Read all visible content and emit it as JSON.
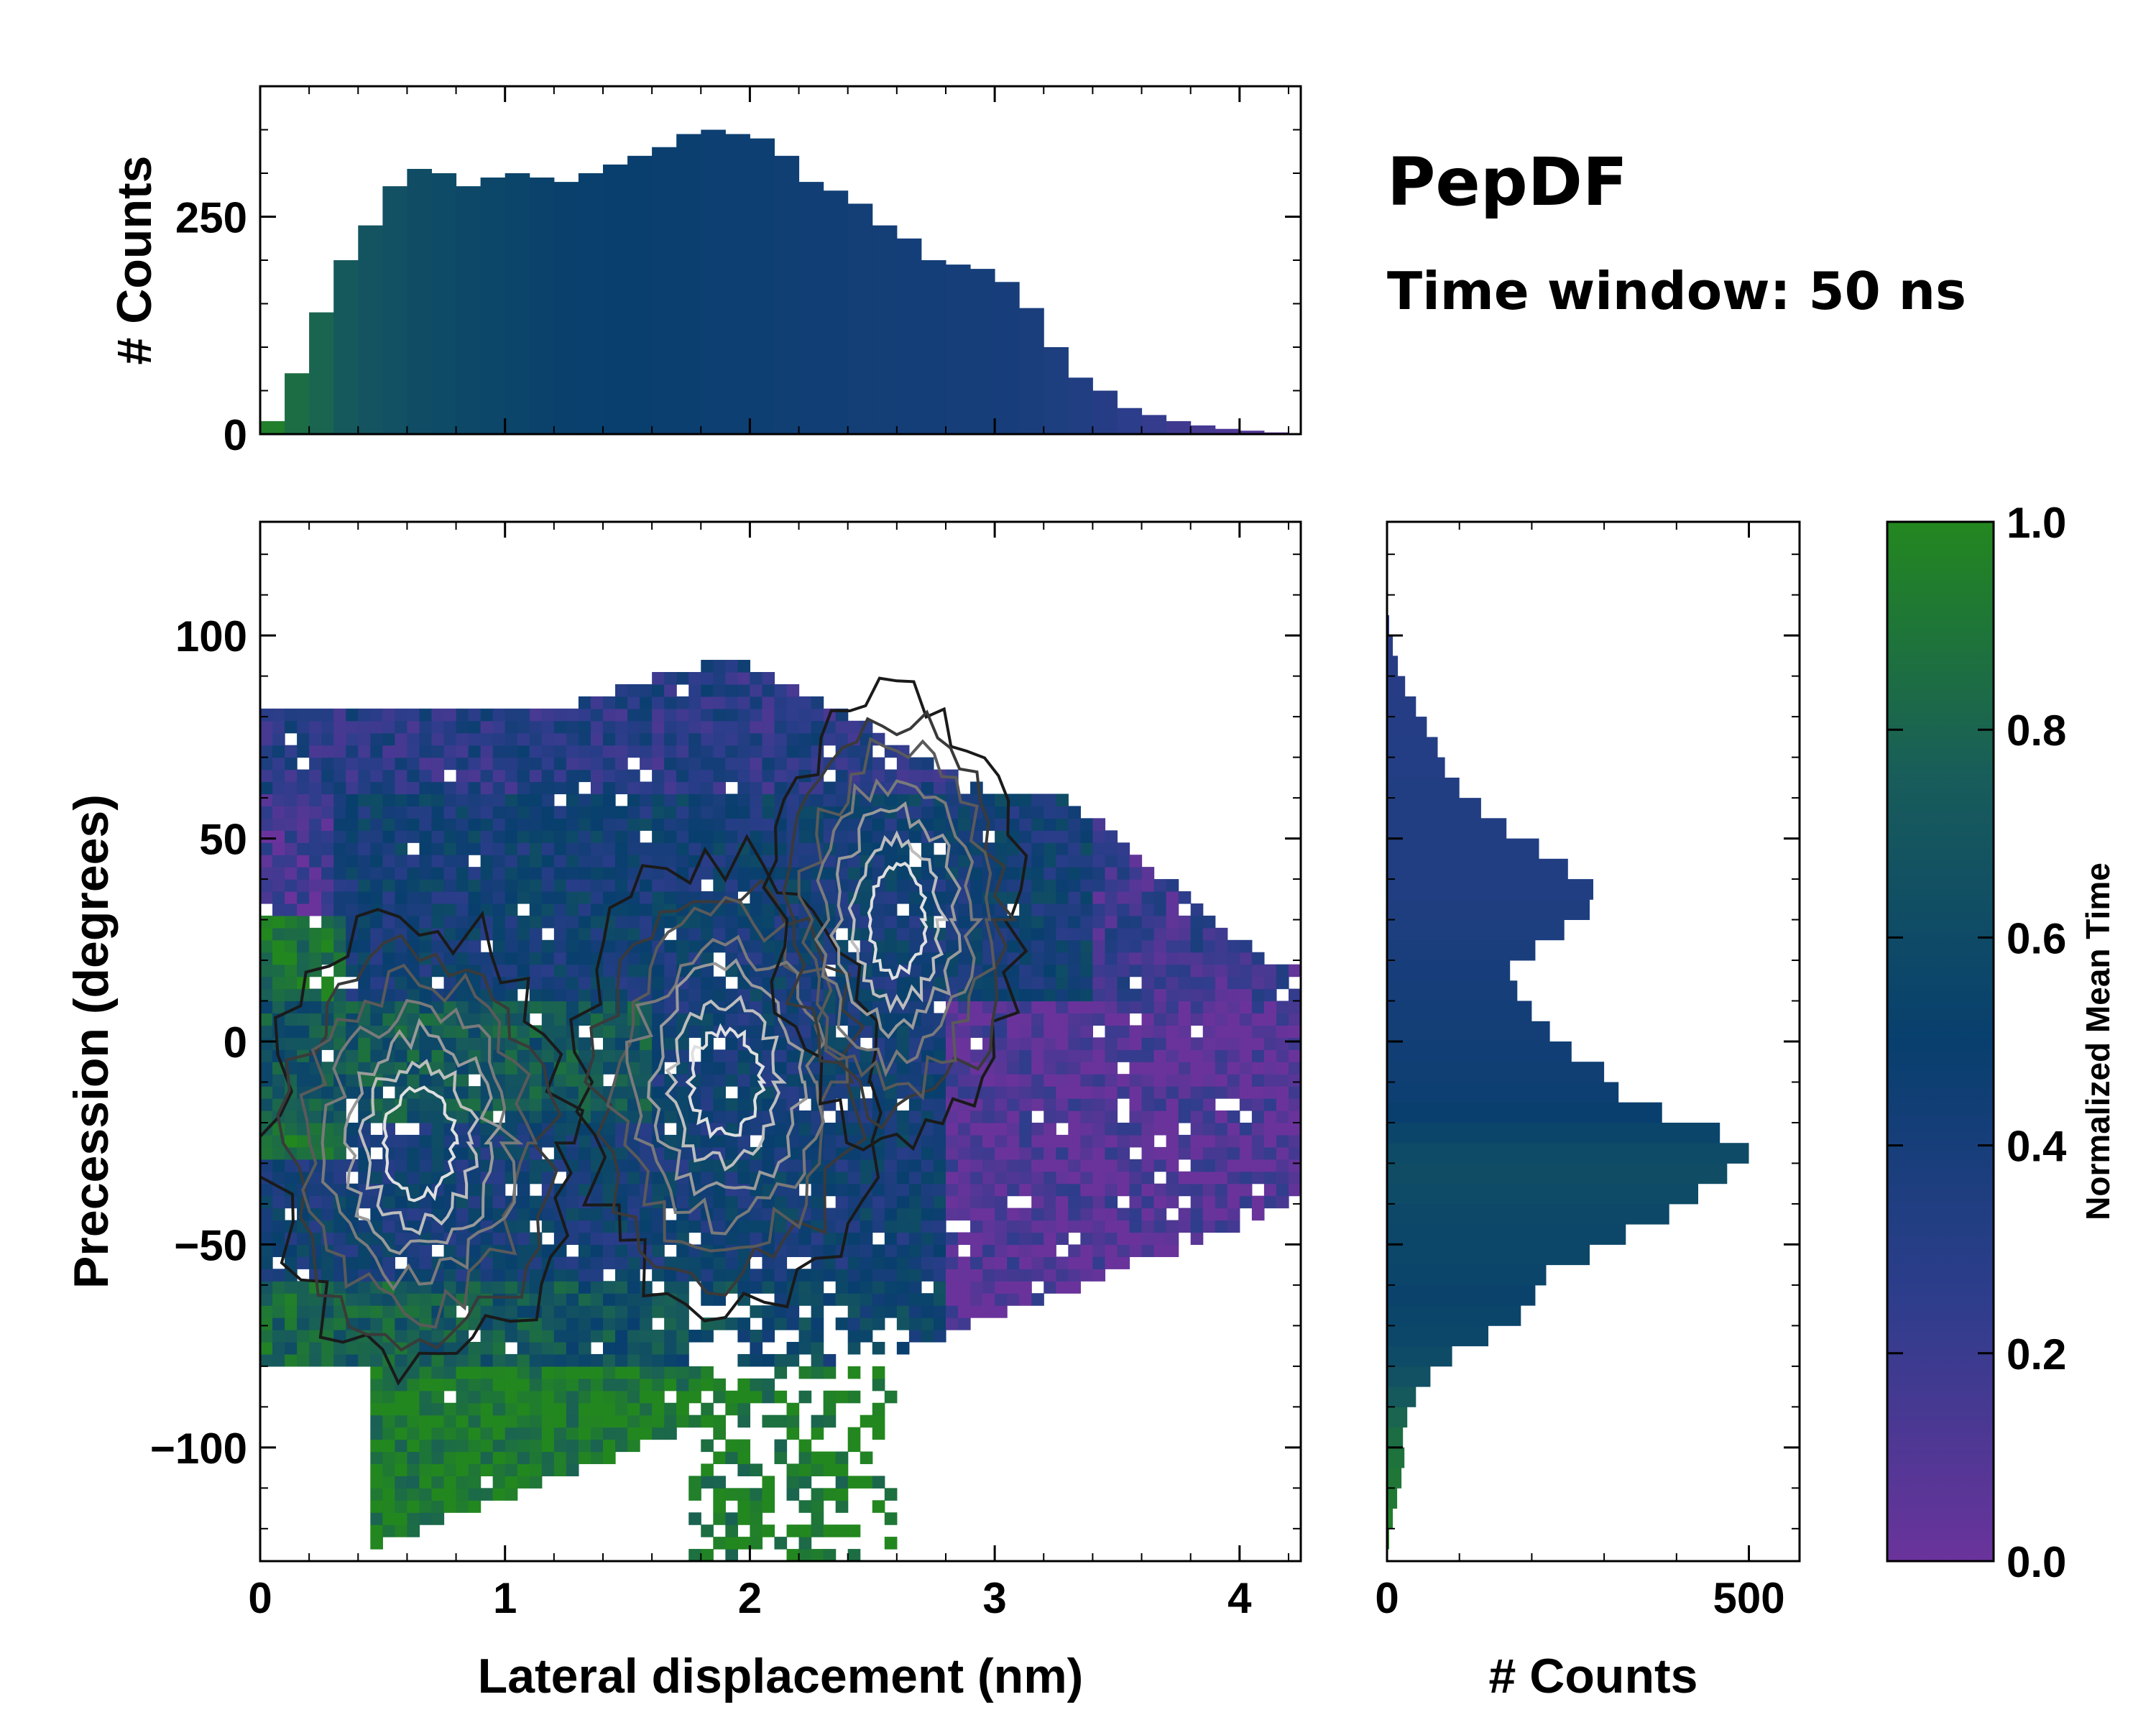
{
  "title": "PepDF",
  "subtitle": "Time window: 50 ns",
  "colors": {
    "low": "#6a339b",
    "mid_low": "#2e3d8c",
    "mid": "#083f6e",
    "mid_high": "#185c5b",
    "high": "#23871f"
  },
  "chart_data": [
    {
      "name": "joint-2d-histogram",
      "type": "heatmap",
      "xlabel": "Lateral displacement (nm)",
      "ylabel": "Precession (degrees)",
      "xlim": [
        0,
        4.25
      ],
      "ylim": [
        -128,
        128
      ],
      "xticks": [
        0,
        1,
        2,
        3,
        4
      ],
      "xtick_labels": [
        "0",
        "1",
        "2",
        "3",
        "4"
      ],
      "yticks": [
        100,
        50,
        0,
        -50,
        -100
      ],
      "ytick_labels": [
        "100",
        "50",
        "0",
        "−50",
        "−100"
      ],
      "color_value": "Normalized Mean Time",
      "contours": "black-to-white density contours",
      "density_centers": [
        {
          "x": 0.65,
          "y": -25
        },
        {
          "x": 1.9,
          "y": -10
        },
        {
          "x": 2.6,
          "y": 30
        }
      ],
      "regions": [
        {
          "label": "early (purple)",
          "x": [
            2.9,
            4.2
          ],
          "y": [
            -60,
            10
          ]
        },
        {
          "label": "late (green)",
          "x": [
            0.4,
            1.6
          ],
          "y": [
            -125,
            -85
          ]
        }
      ]
    },
    {
      "name": "top-marginal-histogram",
      "type": "bar",
      "ylabel": "# Counts",
      "xlim": [
        0,
        4.25
      ],
      "ylim": [
        0,
        400
      ],
      "yticks": [
        0,
        250
      ],
      "ytick_labels": [
        "0",
        "250"
      ],
      "x": [
        0.05,
        0.15,
        0.25,
        0.35,
        0.45,
        0.55,
        0.65,
        0.75,
        0.85,
        0.95,
        1.05,
        1.15,
        1.25,
        1.35,
        1.45,
        1.55,
        1.65,
        1.75,
        1.85,
        1.95,
        2.05,
        2.15,
        2.25,
        2.35,
        2.45,
        2.55,
        2.65,
        2.75,
        2.85,
        2.95,
        3.05,
        3.15,
        3.25,
        3.35,
        3.45,
        3.55,
        3.65,
        3.75,
        3.85,
        3.95,
        4.05,
        4.15
      ],
      "values": [
        15,
        70,
        140,
        200,
        240,
        285,
        305,
        300,
        285,
        295,
        300,
        295,
        290,
        300,
        310,
        320,
        330,
        345,
        350,
        345,
        340,
        320,
        290,
        280,
        265,
        240,
        225,
        200,
        195,
        190,
        175,
        145,
        100,
        65,
        50,
        30,
        22,
        15,
        10,
        6,
        4,
        2
      ],
      "colors": [
        0.95,
        0.85,
        0.8,
        0.72,
        0.68,
        0.65,
        0.62,
        0.6,
        0.58,
        0.56,
        0.55,
        0.53,
        0.52,
        0.51,
        0.5,
        0.5,
        0.49,
        0.48,
        0.47,
        0.47,
        0.46,
        0.45,
        0.44,
        0.44,
        0.43,
        0.43,
        0.42,
        0.42,
        0.41,
        0.41,
        0.4,
        0.38,
        0.36,
        0.34,
        0.3,
        0.26,
        0.22,
        0.18,
        0.15,
        0.12,
        0.1,
        0.08
      ]
    },
    {
      "name": "right-marginal-histogram",
      "type": "bar",
      "orientation": "horizontal",
      "xlabel": "# Counts",
      "xlim": [
        0,
        570
      ],
      "xticks": [
        0,
        500
      ],
      "xtick_labels": [
        "0",
        "500"
      ],
      "y": [
        -122.5,
        -117.5,
        -112.5,
        -107.5,
        -102.5,
        -97.5,
        -92.5,
        -87.5,
        -82.5,
        -77.5,
        -72.5,
        -67.5,
        -62.5,
        -57.5,
        -52.5,
        -47.5,
        -42.5,
        -37.5,
        -32.5,
        -27.5,
        -22.5,
        -17.5,
        -12.5,
        -7.5,
        -2.5,
        2.5,
        7.5,
        12.5,
        17.5,
        22.5,
        27.5,
        32.5,
        37.5,
        42.5,
        47.5,
        52.5,
        57.5,
        62.5,
        67.5,
        72.5,
        77.5,
        82.5,
        87.5,
        92.5,
        97.5,
        102.5
      ],
      "values": [
        3,
        8,
        14,
        20,
        24,
        22,
        28,
        40,
        60,
        90,
        140,
        185,
        205,
        220,
        280,
        330,
        390,
        430,
        470,
        500,
        460,
        380,
        320,
        300,
        255,
        225,
        200,
        180,
        170,
        205,
        245,
        280,
        285,
        250,
        210,
        165,
        130,
        100,
        80,
        70,
        55,
        40,
        25,
        15,
        8,
        3
      ],
      "colors": [
        0.98,
        0.95,
        0.92,
        0.9,
        0.88,
        0.85,
        0.8,
        0.72,
        0.65,
        0.6,
        0.57,
        0.55,
        0.53,
        0.55,
        0.56,
        0.57,
        0.58,
        0.6,
        0.62,
        0.6,
        0.55,
        0.5,
        0.47,
        0.45,
        0.44,
        0.43,
        0.42,
        0.41,
        0.4,
        0.38,
        0.36,
        0.35,
        0.34,
        0.34,
        0.34,
        0.33,
        0.33,
        0.33,
        0.32,
        0.32,
        0.31,
        0.31,
        0.3,
        0.3,
        0.29,
        0.28
      ]
    },
    {
      "name": "colorbar",
      "type": "colorbar",
      "label": "Normalized Mean Time",
      "range": [
        0,
        1
      ],
      "ticks": [
        1.0,
        0.8,
        0.6,
        0.4,
        0.2,
        0.0
      ],
      "tick_labels": [
        "1.0",
        "0.8",
        "0.6",
        "0.4",
        "0.2",
        "0.0"
      ]
    }
  ]
}
